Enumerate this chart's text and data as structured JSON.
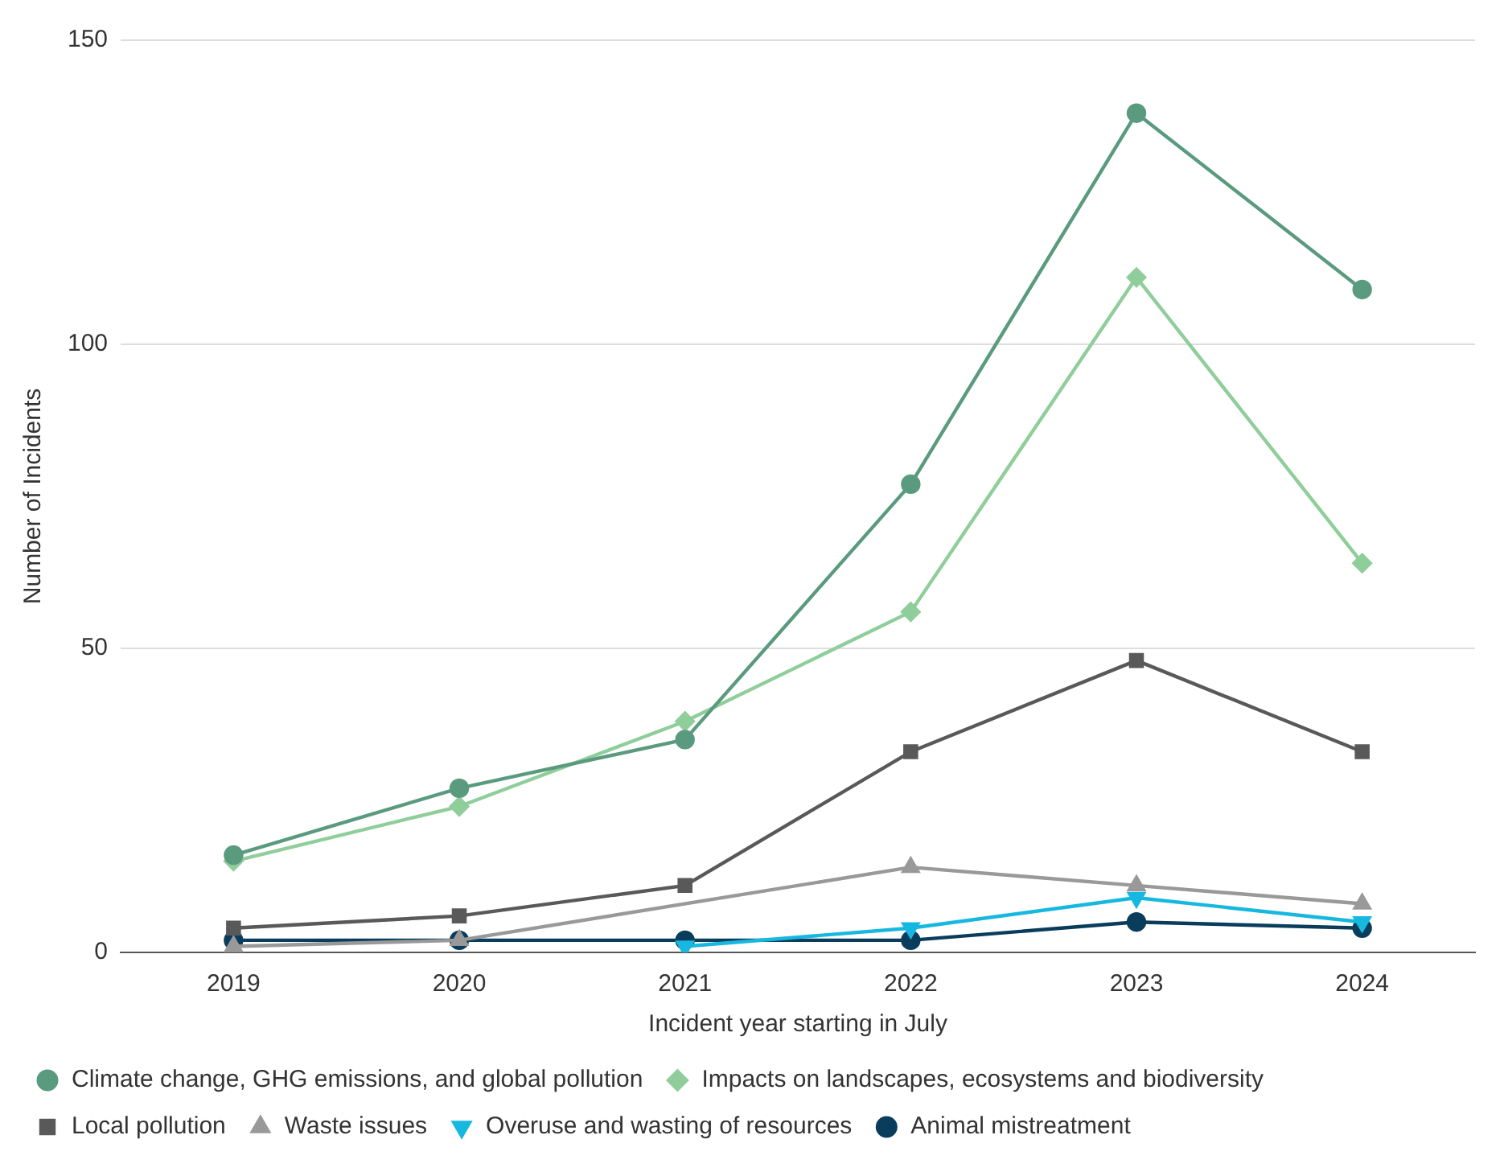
{
  "chart_data": {
    "type": "line",
    "xlabel": "Incident year starting in July",
    "ylabel": "Number of Incidents",
    "categories": [
      "2019",
      "2020",
      "2021",
      "2022",
      "2023",
      "2024"
    ],
    "ylim": [
      0,
      150
    ],
    "yticks": [
      0,
      50,
      100,
      150
    ],
    "grid": "y",
    "legend": "bottom",
    "series": [
      {
        "name": "Climate change, GHG emissions, and global pollution",
        "color": "#5a9a7e",
        "marker": "circle",
        "values": [
          16,
          27,
          35,
          77,
          138,
          109
        ]
      },
      {
        "name": "Impacts on landscapes, ecosystems and biodiversity",
        "color": "#8fce9a",
        "marker": "diamond",
        "values": [
          15,
          24,
          38,
          56,
          111,
          64
        ]
      },
      {
        "name": "Local pollution",
        "color": "#595959",
        "marker": "square",
        "values": [
          4,
          6,
          11,
          33,
          48,
          33
        ]
      },
      {
        "name": "Waste issues",
        "color": "#999999",
        "marker": "triangle",
        "values": [
          1,
          2,
          null,
          14,
          11,
          8
        ]
      },
      {
        "name": "Overuse and wasting of resources",
        "color": "#17b8e0",
        "marker": "triangle-down",
        "values": [
          null,
          null,
          1,
          4,
          9,
          5
        ]
      },
      {
        "name": "Animal mistreatment",
        "color": "#0a3d5c",
        "marker": "circle",
        "values": [
          2,
          2,
          2,
          2,
          5,
          4
        ]
      }
    ]
  }
}
